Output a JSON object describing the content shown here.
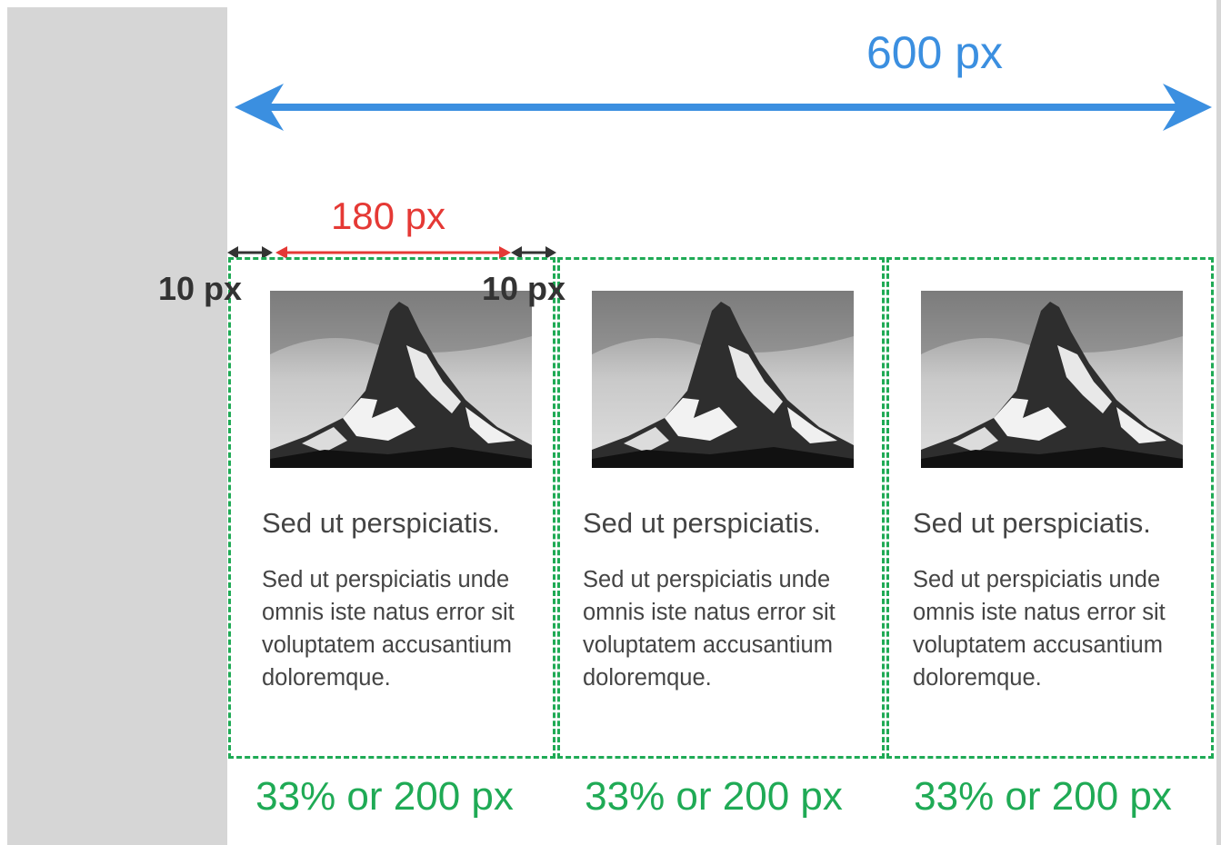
{
  "dimensions": {
    "total": "600 px",
    "content": "180 px",
    "gap_left": "10 px",
    "gap_right": "10 px"
  },
  "columns": [
    {
      "title": "Sed ut perspiciatis.",
      "body": "Sed ut perspiciatis unde omnis iste natus error sit voluptatem accusantium doloremque.",
      "width_label": "33% or 200 px"
    },
    {
      "title": "Sed ut perspiciatis.",
      "body": "Sed ut perspiciatis unde omnis iste natus error sit voluptatem accusantium doloremque.",
      "width_label": "33% or 200 px"
    },
    {
      "title": "Sed ut perspiciatis.",
      "body": "Sed ut perspiciatis unde omnis iste natus error sit voluptatem accusantium doloremque.",
      "width_label": "33% or 200 px"
    }
  ]
}
